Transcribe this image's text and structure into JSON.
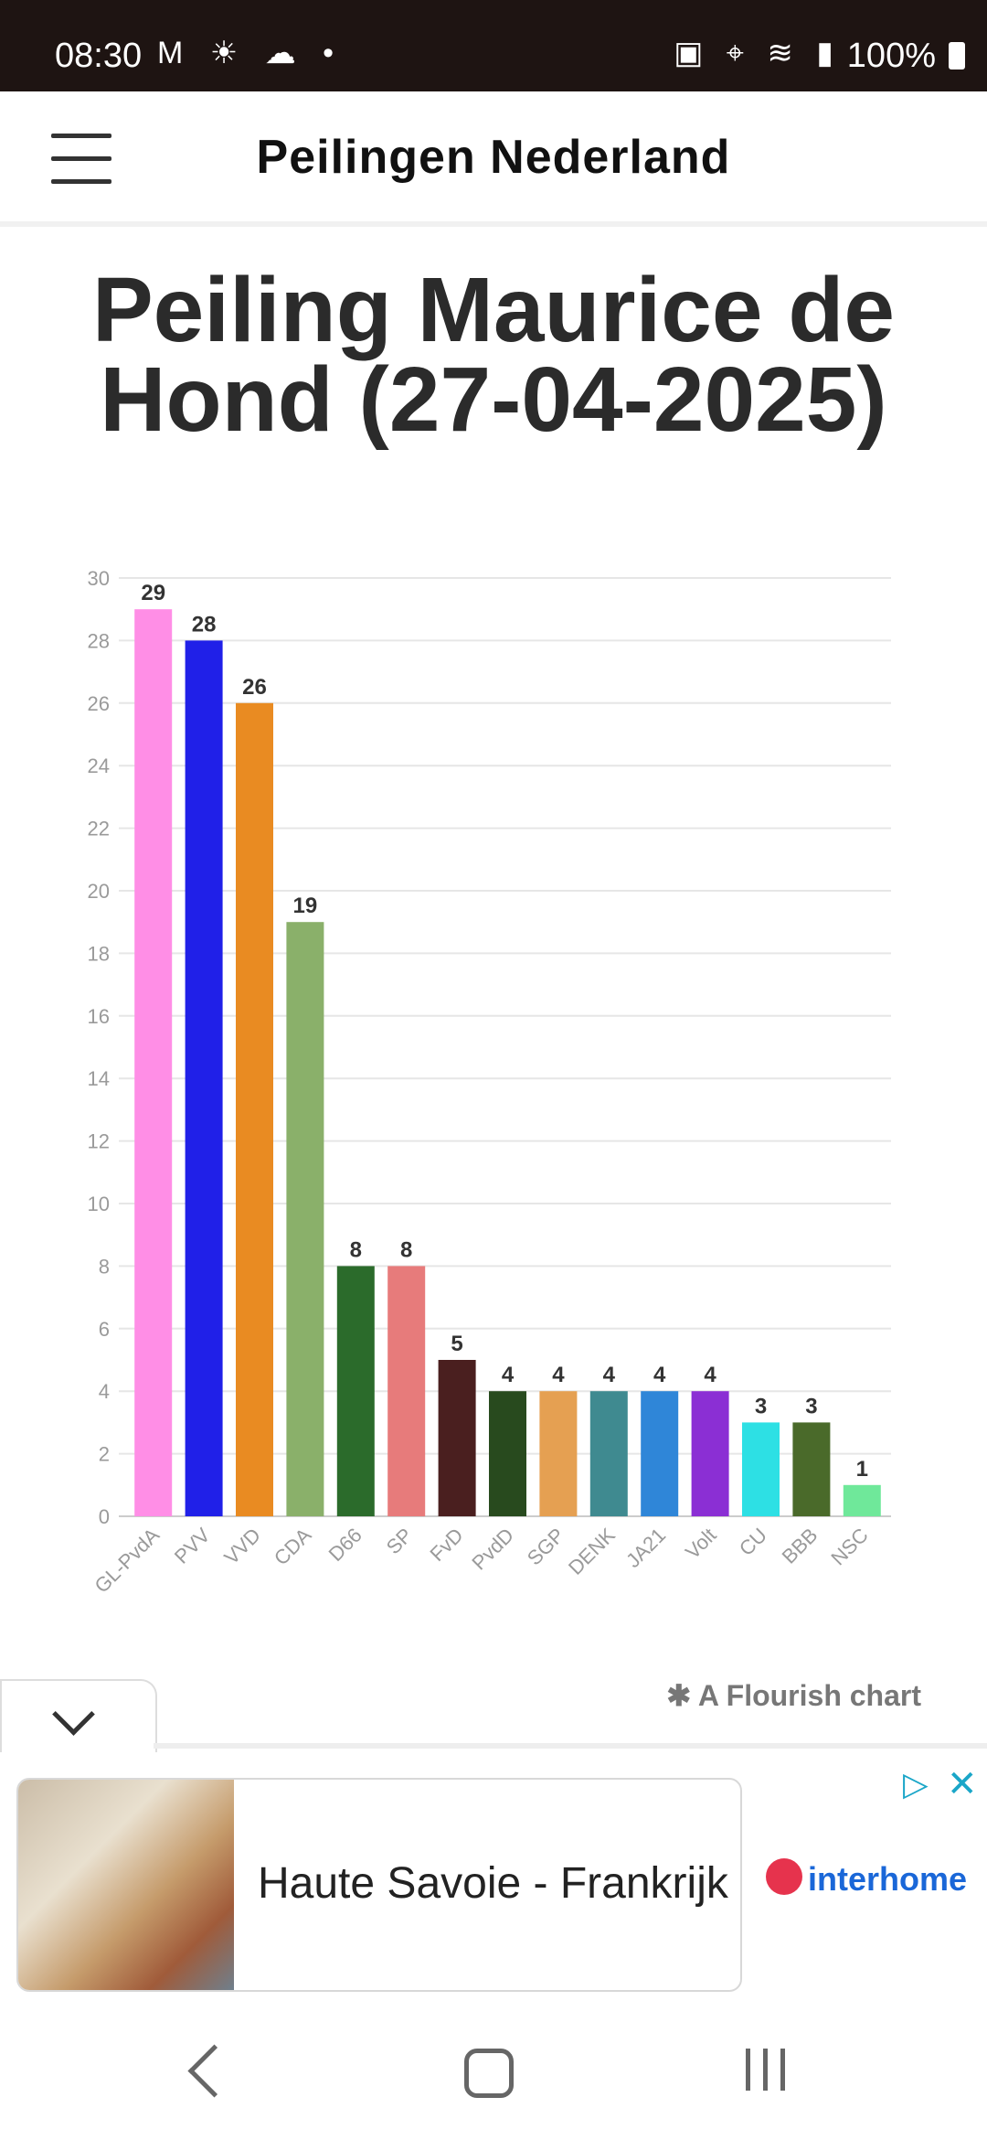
{
  "status_bar": {
    "time": "08:30",
    "left_icons": [
      "gmail-icon",
      "sun-icon",
      "cloud-icon",
      "dot-icon"
    ],
    "right_icons": [
      "battery-saver-icon",
      "location-icon",
      "wifi-icon",
      "signal-icon"
    ],
    "battery": "100%"
  },
  "header": {
    "site_title": "Peilingen Nederland"
  },
  "page": {
    "title": "Peiling Maurice de Hond (27-04-2025)"
  },
  "chart_data": {
    "type": "bar",
    "categories": [
      "GL-PvdA",
      "PVV",
      "VVD",
      "CDA",
      "D66",
      "SP",
      "FvD",
      "PvdD",
      "SGP",
      "DENK",
      "JA21",
      "Volt",
      "CU",
      "BBB",
      "NSC"
    ],
    "values": [
      29,
      28,
      26,
      19,
      8,
      8,
      5,
      4,
      4,
      4,
      4,
      4,
      3,
      3,
      1
    ],
    "colors": [
      "#ff8ee6",
      "#2020e8",
      "#e98b22",
      "#8ab06a",
      "#2b6b2b",
      "#e77b7b",
      "#4a1f1f",
      "#284a1e",
      "#e5a052",
      "#3f8a90",
      "#2f86d8",
      "#8b2fd4",
      "#2de0e4",
      "#4a6a2a",
      "#6fe89a"
    ],
    "ylim": [
      0,
      30
    ],
    "yticks": [
      0,
      2,
      4,
      6,
      8,
      10,
      12,
      14,
      16,
      18,
      20,
      22,
      24,
      26,
      28,
      30
    ],
    "grid": true,
    "data_labels": true
  },
  "footer": {
    "flourish_label": "✱ A Flourish chart"
  },
  "ad": {
    "text": "Haute Savoie - Frankrijk",
    "brand": "interhome",
    "info_icon": "▷",
    "close_icon": "✕"
  }
}
